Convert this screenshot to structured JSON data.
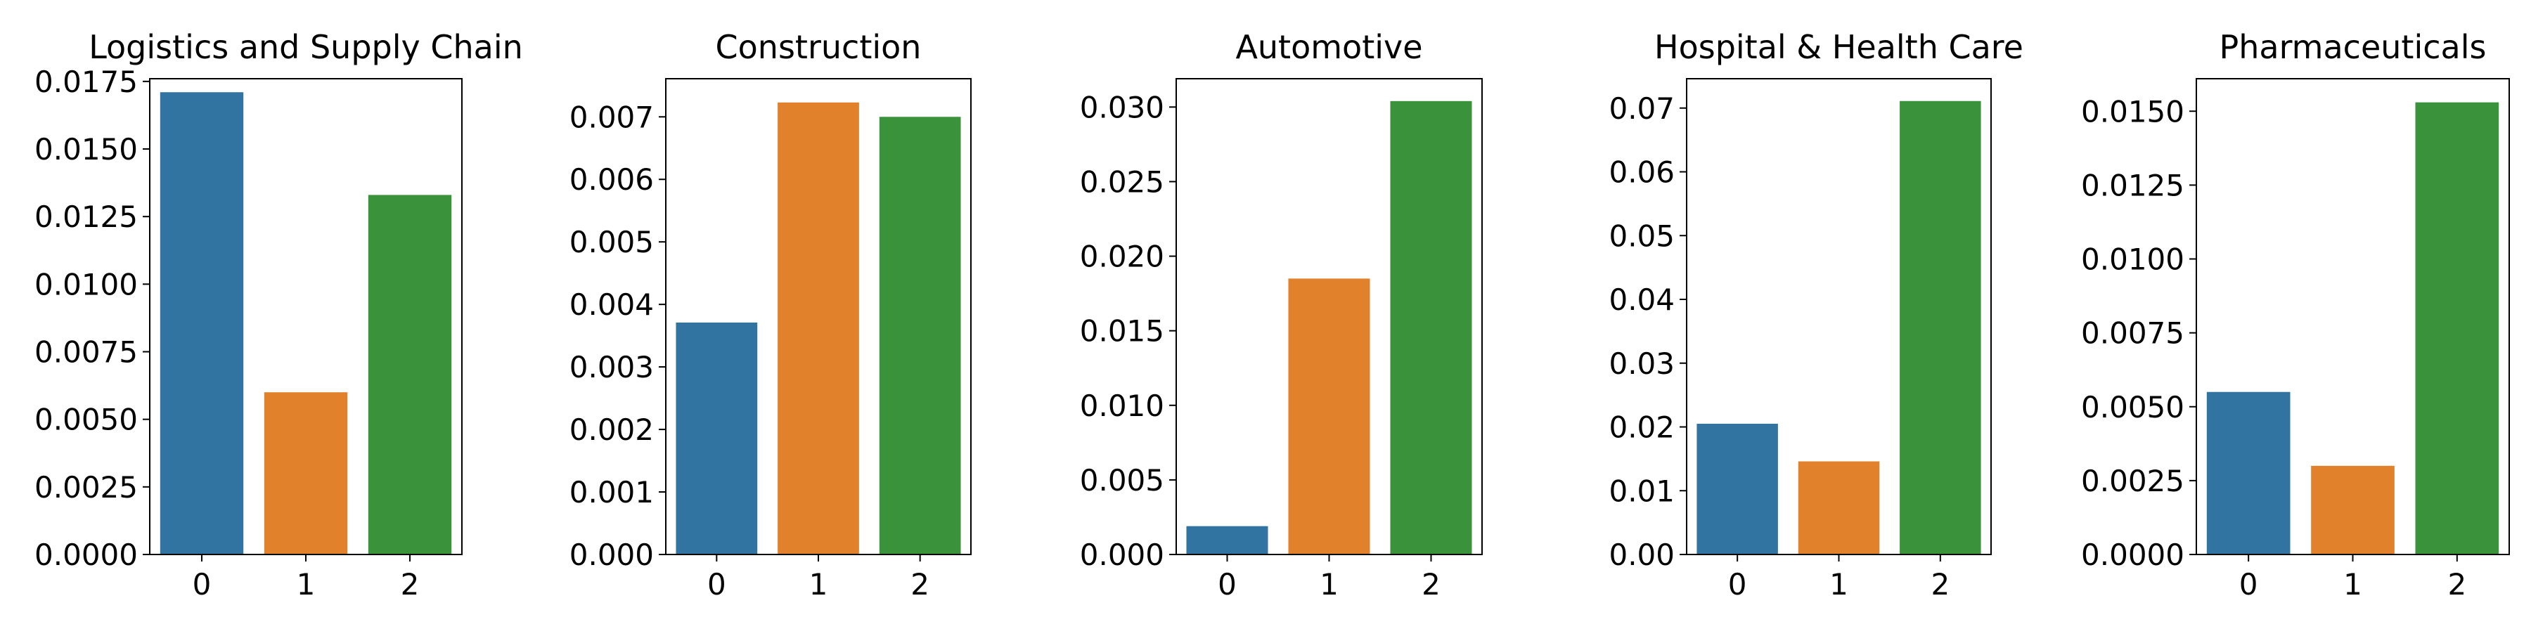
{
  "chart_data": [
    {
      "type": "bar",
      "title": "Logistics and Supply Chain",
      "categories": [
        "0",
        "1",
        "2"
      ],
      "values": [
        0.0171,
        0.006,
        0.0133
      ],
      "ylim": [
        0,
        0.0176
      ],
      "yticks": [
        0,
        0.0025,
        0.005,
        0.0075,
        0.01,
        0.0125,
        0.015,
        0.0175
      ],
      "ytick_labels": [
        "0.0000",
        "0.0025",
        "0.0050",
        "0.0075",
        "0.0100",
        "0.0125",
        "0.0150",
        "0.0175"
      ],
      "xlabel": "",
      "ylabel": "",
      "grid": false
    },
    {
      "type": "bar",
      "title": "Construction",
      "categories": [
        "0",
        "1",
        "2"
      ],
      "values": [
        0.00371,
        0.00723,
        0.007
      ],
      "ylim": [
        0,
        0.00761
      ],
      "yticks": [
        0,
        0.001,
        0.002,
        0.003,
        0.004,
        0.005,
        0.006,
        0.007
      ],
      "ytick_labels": [
        "0.000",
        "0.001",
        "0.002",
        "0.003",
        "0.004",
        "0.005",
        "0.006",
        "0.007"
      ],
      "xlabel": "",
      "ylabel": "",
      "grid": false
    },
    {
      "type": "bar",
      "title": "Automotive",
      "categories": [
        "0",
        "1",
        "2"
      ],
      "values": [
        0.0019,
        0.0185,
        0.0304
      ],
      "ylim": [
        0,
        0.0319
      ],
      "yticks": [
        0,
        0.005,
        0.01,
        0.015,
        0.02,
        0.025,
        0.03
      ],
      "ytick_labels": [
        "0.000",
        "0.005",
        "0.010",
        "0.015",
        "0.020",
        "0.025",
        "0.030"
      ],
      "xlabel": "",
      "ylabel": "",
      "grid": false
    },
    {
      "type": "bar",
      "title": "Hospital & Health Care",
      "categories": [
        "0",
        "1",
        "2"
      ],
      "values": [
        0.0205,
        0.0146,
        0.0711
      ],
      "ylim": [
        0,
        0.0746
      ],
      "yticks": [
        0,
        0.01,
        0.02,
        0.03,
        0.04,
        0.05,
        0.06,
        0.07
      ],
      "ytick_labels": [
        "0.00",
        "0.01",
        "0.02",
        "0.03",
        "0.04",
        "0.05",
        "0.06",
        "0.07"
      ],
      "xlabel": "",
      "ylabel": "",
      "grid": false
    },
    {
      "type": "bar",
      "title": "Pharmaceuticals",
      "categories": [
        "0",
        "1",
        "2"
      ],
      "values": [
        0.0055,
        0.003,
        0.0153
      ],
      "ylim": [
        0,
        0.0161
      ],
      "yticks": [
        0,
        0.0025,
        0.005,
        0.0075,
        0.01,
        0.0125,
        0.015
      ],
      "ytick_labels": [
        "0.0000",
        "0.0025",
        "0.0050",
        "0.0075",
        "0.0100",
        "0.0125",
        "0.0150"
      ],
      "xlabel": "",
      "ylabel": "",
      "grid": false
    }
  ],
  "colors": [
    "#3274a1",
    "#e1812c",
    "#3a923a"
  ]
}
